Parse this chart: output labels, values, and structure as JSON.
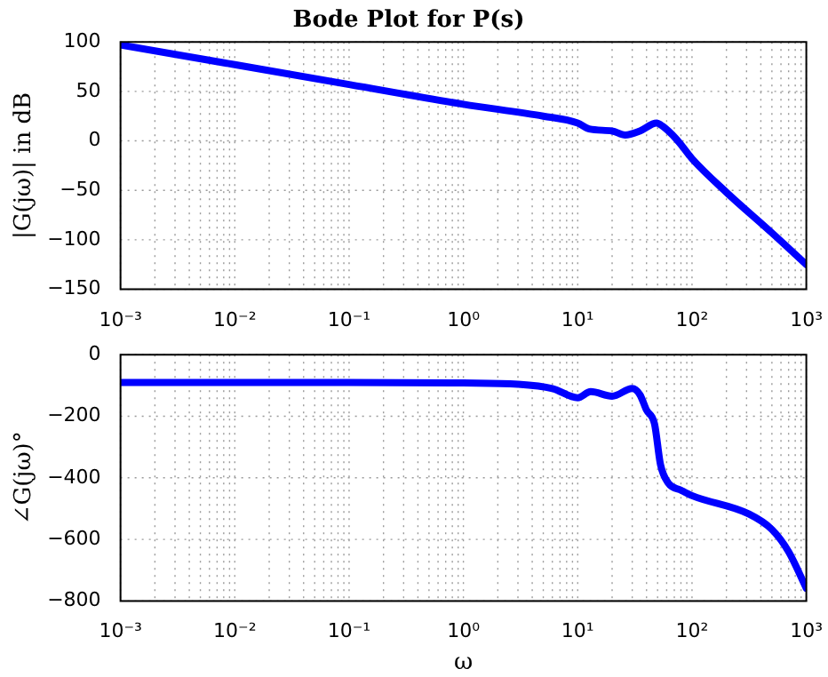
{
  "chart_data": [
    {
      "type": "line",
      "title": "Bode Plot for P(s)",
      "ylabel": "|G(jω)| in dB",
      "log": "x",
      "grid": true,
      "line_style": "solid",
      "marker": "none",
      "xlim": [
        0.001,
        1000
      ],
      "xticks": [
        {
          "value": 0.001,
          "label": "10⁻³"
        },
        {
          "value": 0.01,
          "label": "10⁻²"
        },
        {
          "value": 0.1,
          "label": "10⁻¹"
        },
        {
          "value": 1,
          "label": "10⁰"
        },
        {
          "value": 10,
          "label": "10¹"
        },
        {
          "value": 100,
          "label": "10²"
        },
        {
          "value": 1000,
          "label": "10³"
        }
      ],
      "ylim": [
        -150,
        100
      ],
      "yticks": [
        -150,
        -100,
        -50,
        0,
        50,
        100
      ],
      "series": [
        {
          "color": "#0000ff",
          "x": [
            0.001,
            0.01,
            0.1,
            1,
            5,
            10,
            12.6,
            20,
            26,
            35,
            49,
            55,
            74,
            100,
            200,
            500,
            1000
          ],
          "values": [
            97,
            77,
            57,
            37,
            25,
            18,
            12,
            10,
            6,
            10,
            18,
            15,
            1,
            -18,
            -52,
            -93,
            -125
          ]
        }
      ]
    },
    {
      "type": "line",
      "xlabel": "ω",
      "ylabel": "∠G(jω)°",
      "log": "x",
      "grid": true,
      "line_style": "solid",
      "marker": "none",
      "xlim": [
        0.001,
        1000
      ],
      "xticks": [
        {
          "value": 0.001,
          "label": "10⁻³"
        },
        {
          "value": 0.01,
          "label": "10⁻²"
        },
        {
          "value": 0.1,
          "label": "10⁻¹"
        },
        {
          "value": 1,
          "label": "10⁰"
        },
        {
          "value": 10,
          "label": "10¹"
        },
        {
          "value": 100,
          "label": "10²"
        },
        {
          "value": 1000,
          "label": "10³"
        }
      ],
      "ylim": [
        -800,
        0
      ],
      "yticks": [
        -800,
        -600,
        -400,
        -200,
        0
      ],
      "series": [
        {
          "color": "#0000ff",
          "x": [
            0.001,
            0.01,
            0.1,
            1,
            3,
            6,
            10,
            13,
            20,
            30,
            35,
            40,
            47,
            53,
            62,
            80,
            100,
            316,
            500,
            700,
            1000
          ],
          "values": [
            -90,
            -90,
            -90,
            -92,
            -96,
            -110,
            -140,
            -120,
            -135,
            -110,
            -130,
            -180,
            -225,
            -357,
            -417,
            -440,
            -458,
            -518,
            -568,
            -640,
            -759
          ]
        }
      ]
    }
  ]
}
